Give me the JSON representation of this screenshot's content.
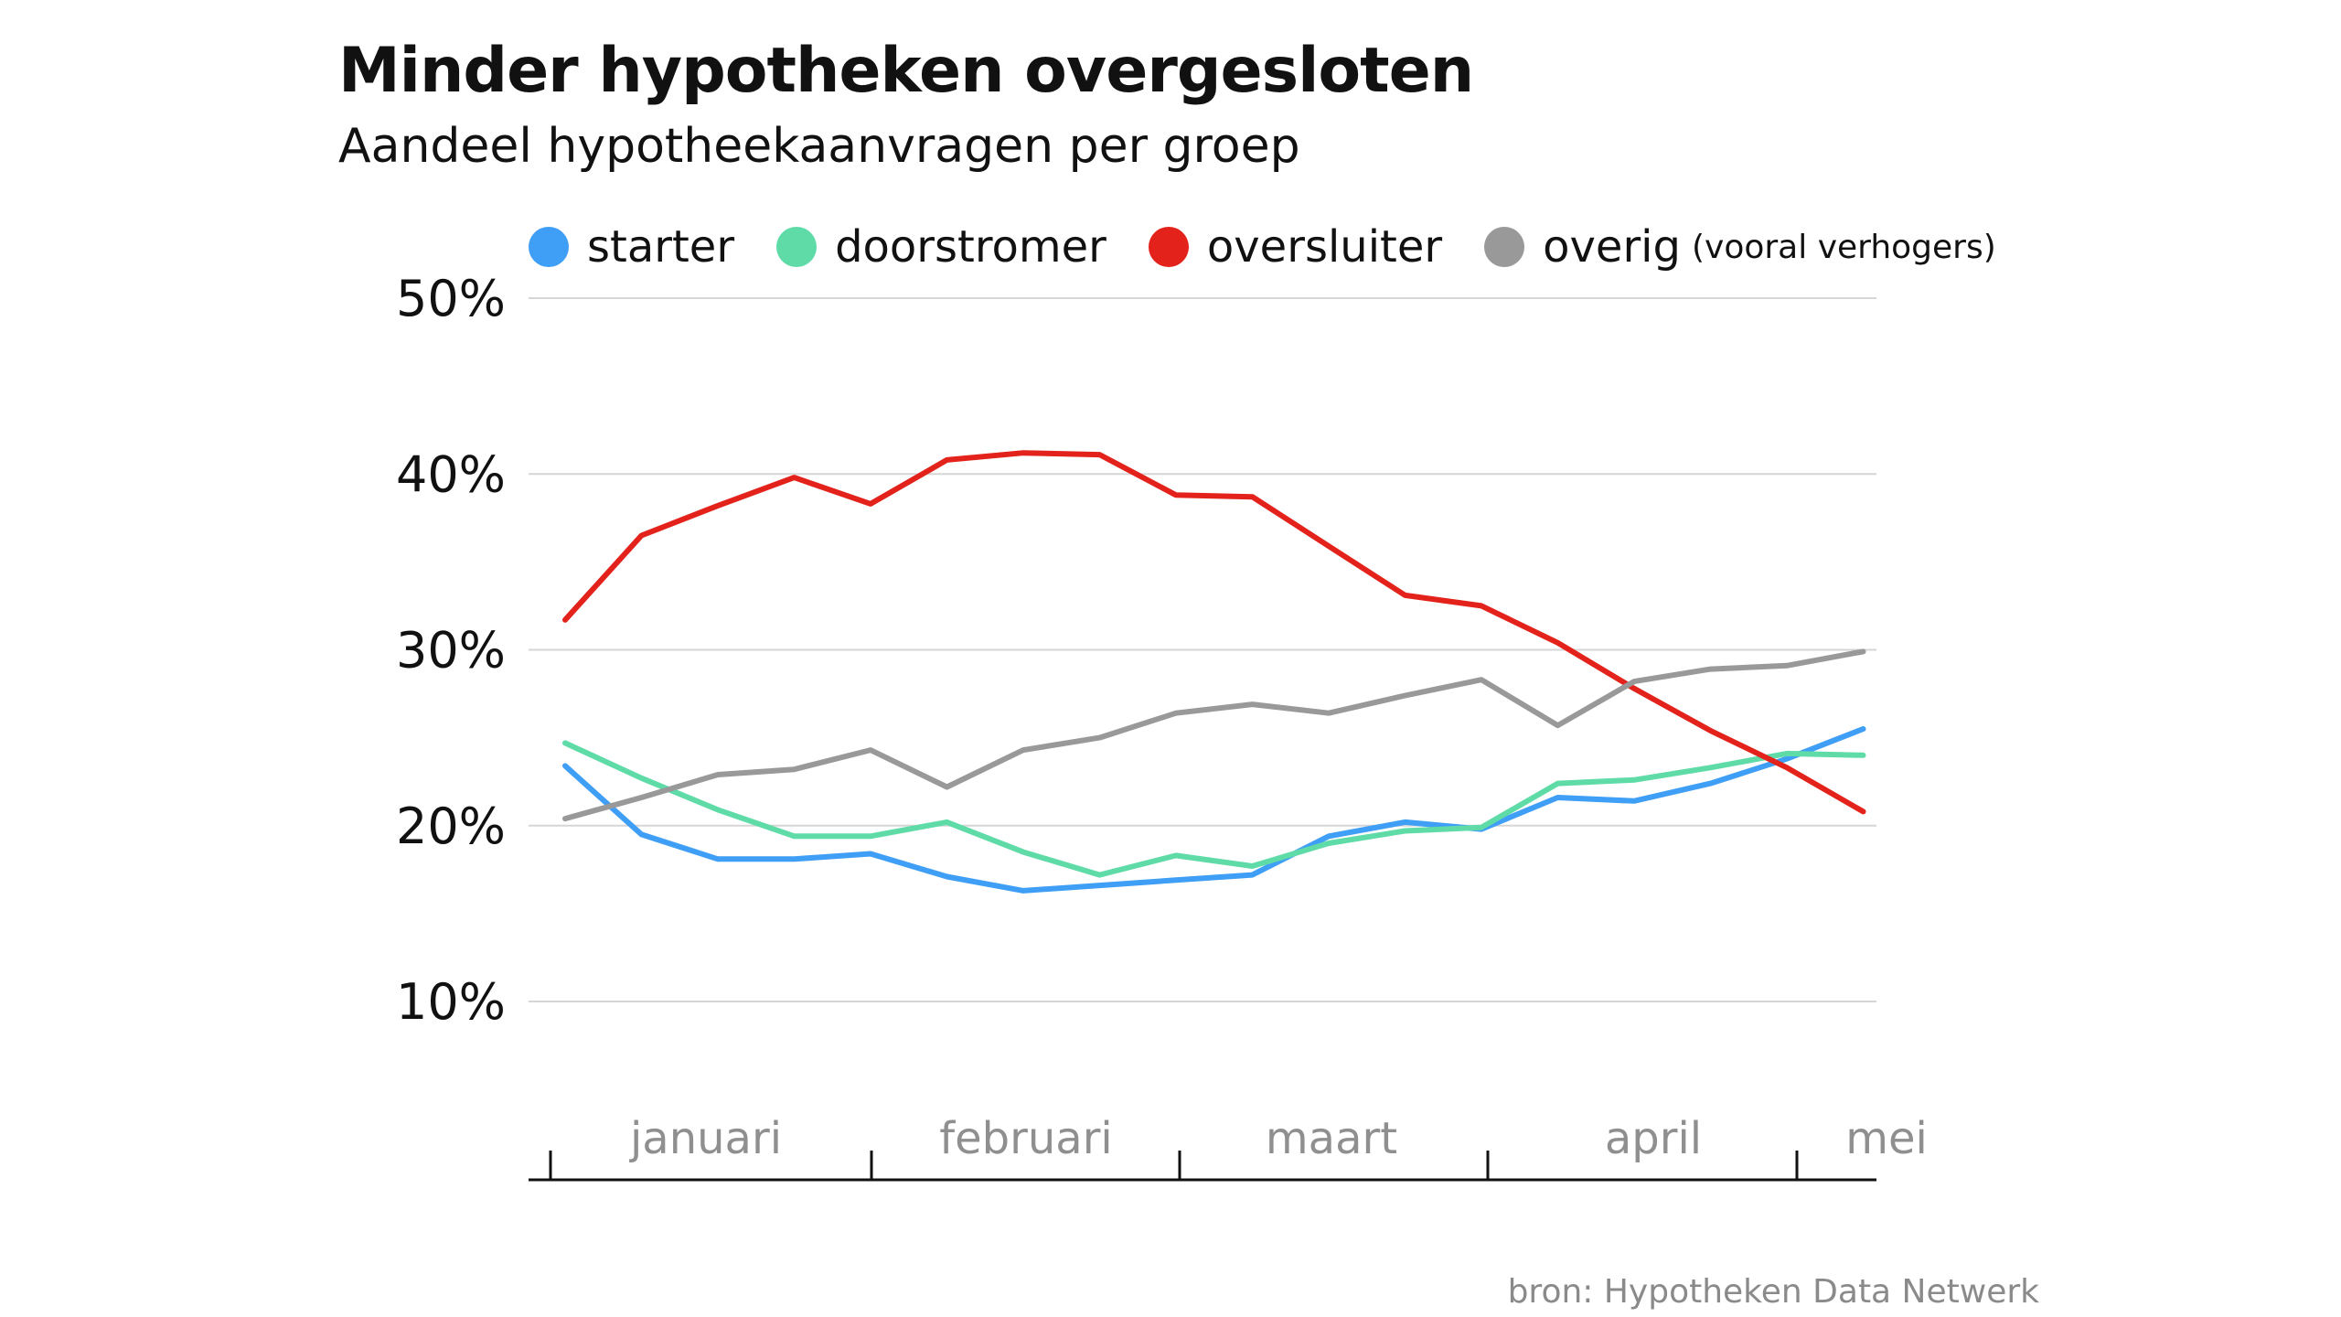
{
  "chart_data": {
    "type": "line",
    "title": "Minder hypotheken overgesloten",
    "subtitle": "Aandeel hypotheekaanvragen per groep",
    "ylim": [
      0,
      50
    ],
    "yticks": [
      10,
      20,
      30,
      40,
      50
    ],
    "ytick_labels": [
      "10%",
      "20%",
      "30%",
      "40%",
      "50%"
    ],
    "month_labels": [
      "januari",
      "februari",
      "maart",
      "april",
      "mei"
    ],
    "grid": true,
    "legend_position": "top",
    "x": [
      0,
      1,
      2,
      3,
      4,
      5,
      6,
      7,
      8,
      9,
      10,
      11,
      12,
      13,
      14,
      15,
      16,
      17
    ],
    "series": [
      {
        "name": "starter",
        "color": "#3f9ef5",
        "values": [
          23.4,
          19.5,
          18.1,
          18.1,
          18.4,
          17.1,
          16.3,
          16.6,
          16.9,
          17.2,
          19.4,
          20.2,
          19.8,
          21.6,
          21.4,
          22.4,
          23.8,
          25.5
        ]
      },
      {
        "name": "doorstromer",
        "color": "#5fdba8",
        "values": [
          24.7,
          22.7,
          20.9,
          19.4,
          19.4,
          20.2,
          18.5,
          17.2,
          18.3,
          17.7,
          19.0,
          19.7,
          19.9,
          22.4,
          22.6,
          23.3,
          24.1,
          24.0
        ]
      },
      {
        "name": "oversluiter",
        "color": "#e3231b",
        "values": [
          31.7,
          36.5,
          38.2,
          39.8,
          38.3,
          40.8,
          41.2,
          41.1,
          38.8,
          38.7,
          35.9,
          33.1,
          32.5,
          30.4,
          27.8,
          25.4,
          23.3,
          20.8
        ]
      },
      {
        "name": "overig",
        "note": "(vooral verhogers)",
        "color": "#999999",
        "values": [
          20.4,
          21.6,
          22.9,
          23.2,
          24.3,
          22.2,
          24.3,
          25.0,
          26.4,
          26.9,
          26.4,
          27.4,
          28.3,
          25.7,
          28.2,
          28.9,
          29.1,
          29.9
        ]
      }
    ]
  },
  "source": "bron: Hypotheken Data Netwerk"
}
